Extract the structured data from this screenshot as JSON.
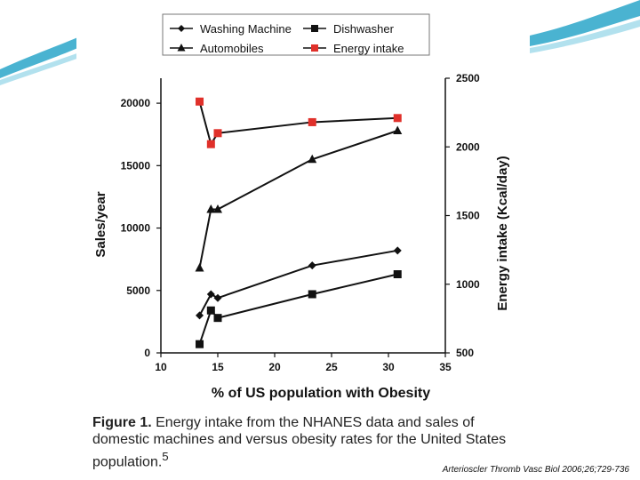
{
  "theme": {
    "accent": "#2aa6c9",
    "accent_light": "#9fd9ea",
    "series_black": "#111111",
    "series_red": "#e0302a"
  },
  "chart_data": {
    "type": "line",
    "x_label": "% of US population with Obesity",
    "y_label_left": "Sales/year",
    "y_label_right": "Energy intake (Kcal/day)",
    "xlim": [
      10,
      35
    ],
    "ylim_left": [
      0,
      22000
    ],
    "ylim_right": [
      500,
      2500
    ],
    "x_ticks": [
      10,
      15,
      20,
      25,
      30,
      35
    ],
    "y_ticks_left": [
      0,
      5000,
      10000,
      15000,
      20000
    ],
    "y_ticks_right": [
      500,
      1000,
      1500,
      2000,
      2500
    ],
    "legend_position": "top",
    "series": [
      {
        "name": "Washing Machine",
        "marker": "diamond",
        "axis": "left",
        "color": "#111111",
        "points": [
          [
            13.4,
            3000
          ],
          [
            14.4,
            4700
          ],
          [
            15.0,
            4400
          ],
          [
            23.3,
            7000
          ],
          [
            30.8,
            8200
          ]
        ]
      },
      {
        "name": "Dishwasher",
        "marker": "square",
        "axis": "left",
        "color": "#111111",
        "points": [
          [
            13.4,
            700
          ],
          [
            14.4,
            3400
          ],
          [
            15.0,
            2800
          ],
          [
            23.3,
            4700
          ],
          [
            30.8,
            6300
          ]
        ]
      },
      {
        "name": "Automobiles",
        "marker": "triangle",
        "axis": "left",
        "color": "#111111",
        "points": [
          [
            13.4,
            6800
          ],
          [
            14.4,
            11500
          ],
          [
            15.0,
            11500
          ],
          [
            23.3,
            15500
          ],
          [
            30.8,
            17800
          ]
        ]
      },
      {
        "name": "Energy intake",
        "marker": "square",
        "axis": "right",
        "color": "#e0302a",
        "points": [
          [
            13.4,
            2330
          ],
          [
            14.4,
            2020
          ],
          [
            15.0,
            2100
          ],
          [
            23.3,
            2180
          ],
          [
            30.8,
            2210
          ]
        ]
      }
    ]
  },
  "caption": {
    "label": "Figure 1.",
    "text": " Energy intake from the NHANES data and sales of domestic machines and versus obesity rates for the United States population.",
    "superscript": "5"
  },
  "citation": "Arterioscler Thromb Vasc Biol 2006;26;729-736"
}
